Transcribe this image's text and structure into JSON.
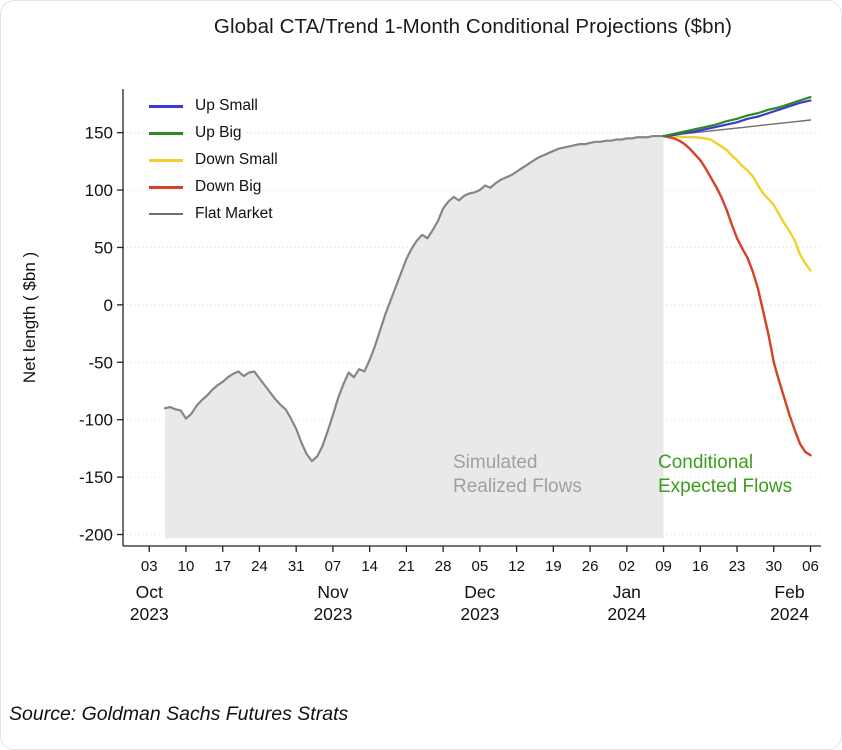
{
  "title": "Global CTA/Trend 1-Month Conditional Projections ($bn)",
  "source": "Source: Goldman Sachs Futures Strats",
  "annotations": {
    "realized_line1": "Simulated",
    "realized_line2": "Realized Flows",
    "expected_line1": "Conditional",
    "expected_line2": "Expected Flows"
  },
  "chart_data": {
    "type": "line",
    "title": "Global CTA/Trend 1-Month Conditional Projections ($bn)",
    "xlabel": "",
    "ylabel": "Net length ( $bn )",
    "ylim": [
      -210,
      188
    ],
    "yticks": [
      -200,
      -150,
      -100,
      -50,
      0,
      50,
      100,
      150
    ],
    "grid": "horizontal-dotted",
    "x_unit": "days since 2023-10-03, weekly ticks",
    "xticks": [
      {
        "day": 0,
        "label": "03"
      },
      {
        "day": 7,
        "label": "10"
      },
      {
        "day": 14,
        "label": "17"
      },
      {
        "day": 21,
        "label": "24"
      },
      {
        "day": 28,
        "label": "31"
      },
      {
        "day": 35,
        "label": "07"
      },
      {
        "day": 42,
        "label": "14"
      },
      {
        "day": 49,
        "label": "21"
      },
      {
        "day": 56,
        "label": "28"
      },
      {
        "day": 63,
        "label": "05"
      },
      {
        "day": 70,
        "label": "12"
      },
      {
        "day": 77,
        "label": "19"
      },
      {
        "day": 84,
        "label": "26"
      },
      {
        "day": 91,
        "label": "02"
      },
      {
        "day": 98,
        "label": "09"
      },
      {
        "day": 105,
        "label": "16"
      },
      {
        "day": 112,
        "label": "23"
      },
      {
        "day": 119,
        "label": "30"
      },
      {
        "day": 126,
        "label": "06"
      }
    ],
    "month_labels": [
      {
        "day": 0,
        "month": "Oct",
        "year": "2023"
      },
      {
        "day": 35,
        "month": "Nov",
        "year": "2023"
      },
      {
        "day": 63,
        "month": "Dec",
        "year": "2023"
      },
      {
        "day": 91,
        "month": "Jan",
        "year": "2024"
      },
      {
        "day": 122,
        "month": "Feb",
        "year": "2024"
      }
    ],
    "legend": {
      "position": "upper-left",
      "entries": [
        "Up Small",
        "Up Big",
        "Down Small",
        "Down Big",
        "Flat Market"
      ]
    },
    "colors": {
      "shade": "#e9e9e9",
      "realized_line": "#868686",
      "up_small": "#3a3ad0",
      "up_big": "#2f8b21",
      "down_small": "#f2d12e",
      "down_big": "#d64128",
      "flat_market": "#6e6e6e",
      "realized_text": "#a0a0a0",
      "expected_text": "#3a9e1e"
    },
    "series": [
      {
        "id": "realized",
        "name": "Simulated Realized Flows",
        "legend": false,
        "color": "#868686",
        "width": 2.2,
        "points": [
          [
            3,
            -90
          ],
          [
            4,
            -89
          ],
          [
            5,
            -91
          ],
          [
            6,
            -92
          ],
          [
            7,
            -99
          ],
          [
            8,
            -95
          ],
          [
            9,
            -88
          ],
          [
            10,
            -83
          ],
          [
            11,
            -79
          ],
          [
            12,
            -74
          ],
          [
            13,
            -70
          ],
          [
            14,
            -67
          ],
          [
            15,
            -63
          ],
          [
            16,
            -60
          ],
          [
            17,
            -58
          ],
          [
            18,
            -62
          ],
          [
            19,
            -59
          ],
          [
            20,
            -58
          ],
          [
            21,
            -64
          ],
          [
            22,
            -70
          ],
          [
            23,
            -76
          ],
          [
            24,
            -82
          ],
          [
            25,
            -87
          ],
          [
            26,
            -91
          ],
          [
            27,
            -99
          ],
          [
            28,
            -108
          ],
          [
            29,
            -120
          ],
          [
            30,
            -130
          ],
          [
            31,
            -136
          ],
          [
            32,
            -132
          ],
          [
            33,
            -123
          ],
          [
            34,
            -110
          ],
          [
            35,
            -96
          ],
          [
            36,
            -81
          ],
          [
            37,
            -69
          ],
          [
            38,
            -59
          ],
          [
            39,
            -63
          ],
          [
            40,
            -56
          ],
          [
            41,
            -58
          ],
          [
            42,
            -48
          ],
          [
            43,
            -36
          ],
          [
            44,
            -22
          ],
          [
            45,
            -8
          ],
          [
            46,
            4
          ],
          [
            47,
            16
          ],
          [
            48,
            28
          ],
          [
            49,
            40
          ],
          [
            50,
            49
          ],
          [
            51,
            56
          ],
          [
            52,
            61
          ],
          [
            53,
            58
          ],
          [
            54,
            65
          ],
          [
            55,
            73
          ],
          [
            56,
            84
          ],
          [
            57,
            90
          ],
          [
            58,
            94
          ],
          [
            59,
            91
          ],
          [
            60,
            95
          ],
          [
            61,
            97
          ],
          [
            62,
            98
          ],
          [
            63,
            100
          ],
          [
            64,
            104
          ],
          [
            65,
            102
          ],
          [
            66,
            106
          ],
          [
            67,
            109
          ],
          [
            68,
            111
          ],
          [
            69,
            113
          ],
          [
            70,
            116
          ],
          [
            71,
            119
          ],
          [
            72,
            122
          ],
          [
            73,
            125
          ],
          [
            74,
            128
          ],
          [
            75,
            130
          ],
          [
            76,
            132
          ],
          [
            77,
            134
          ],
          [
            78,
            136
          ],
          [
            79,
            137
          ],
          [
            80,
            138
          ],
          [
            81,
            139
          ],
          [
            82,
            140
          ],
          [
            83,
            140
          ],
          [
            84,
            141
          ],
          [
            85,
            142
          ],
          [
            86,
            142
          ],
          [
            87,
            143
          ],
          [
            88,
            143
          ],
          [
            89,
            144
          ],
          [
            90,
            144
          ],
          [
            91,
            145
          ],
          [
            92,
            145
          ],
          [
            93,
            146
          ],
          [
            94,
            146
          ],
          [
            95,
            146
          ],
          [
            96,
            147
          ],
          [
            97,
            147
          ],
          [
            98,
            147
          ]
        ]
      },
      {
        "id": "flat_market",
        "name": "Flat Market",
        "legend": true,
        "color": "#6e6e6e",
        "width": 1.4,
        "points": [
          [
            98,
            147
          ],
          [
            102,
            149
          ],
          [
            106,
            151
          ],
          [
            110,
            153
          ],
          [
            114,
            155
          ],
          [
            118,
            157
          ],
          [
            122,
            159
          ],
          [
            126,
            161
          ]
        ]
      },
      {
        "id": "down_small",
        "name": "Down Small",
        "legend": true,
        "color": "#f2d12e",
        "width": 2.4,
        "points": [
          [
            98,
            147
          ],
          [
            100,
            147
          ],
          [
            102,
            146
          ],
          [
            104,
            146
          ],
          [
            106,
            145
          ],
          [
            107,
            144
          ],
          [
            108,
            141
          ],
          [
            109,
            138
          ],
          [
            110,
            135
          ],
          [
            111,
            130
          ],
          [
            112,
            126
          ],
          [
            113,
            121
          ],
          [
            114,
            117
          ],
          [
            115,
            112
          ],
          [
            116,
            104
          ],
          [
            117,
            97
          ],
          [
            118,
            92
          ],
          [
            119,
            87
          ],
          [
            120,
            79
          ],
          [
            121,
            71
          ],
          [
            122,
            64
          ],
          [
            123,
            56
          ],
          [
            124,
            44
          ],
          [
            125,
            36
          ],
          [
            126,
            30
          ]
        ]
      },
      {
        "id": "down_big",
        "name": "Down Big",
        "legend": true,
        "color": "#d64128",
        "width": 2.4,
        "points": [
          [
            98,
            147
          ],
          [
            99,
            146
          ],
          [
            100,
            145
          ],
          [
            101,
            143
          ],
          [
            102,
            140
          ],
          [
            103,
            136
          ],
          [
            104,
            131
          ],
          [
            105,
            126
          ],
          [
            106,
            119
          ],
          [
            107,
            111
          ],
          [
            108,
            103
          ],
          [
            109,
            94
          ],
          [
            110,
            83
          ],
          [
            111,
            70
          ],
          [
            112,
            58
          ],
          [
            113,
            49
          ],
          [
            114,
            41
          ],
          [
            115,
            29
          ],
          [
            116,
            14
          ],
          [
            117,
            -6
          ],
          [
            118,
            -26
          ],
          [
            119,
            -50
          ],
          [
            120,
            -66
          ],
          [
            121,
            -81
          ],
          [
            122,
            -96
          ],
          [
            123,
            -109
          ],
          [
            124,
            -121
          ],
          [
            125,
            -128
          ],
          [
            126,
            -131
          ]
        ]
      },
      {
        "id": "up_small",
        "name": "Up Small",
        "legend": true,
        "color": "#3a3ad0",
        "width": 2.2,
        "points": [
          [
            98,
            147
          ],
          [
            100,
            148
          ],
          [
            102,
            150
          ],
          [
            104,
            151
          ],
          [
            106,
            153
          ],
          [
            108,
            155
          ],
          [
            110,
            157
          ],
          [
            112,
            159
          ],
          [
            114,
            162
          ],
          [
            116,
            164
          ],
          [
            118,
            167
          ],
          [
            120,
            170
          ],
          [
            122,
            173
          ],
          [
            124,
            176
          ],
          [
            126,
            178
          ]
        ]
      },
      {
        "id": "up_big",
        "name": "Up Big",
        "legend": true,
        "color": "#2f8b21",
        "width": 2.2,
        "points": [
          [
            98,
            147
          ],
          [
            100,
            149
          ],
          [
            102,
            151
          ],
          [
            104,
            153
          ],
          [
            106,
            155
          ],
          [
            108,
            157
          ],
          [
            110,
            160
          ],
          [
            112,
            162
          ],
          [
            114,
            165
          ],
          [
            116,
            167
          ],
          [
            118,
            170
          ],
          [
            120,
            172
          ],
          [
            122,
            175
          ],
          [
            124,
            178
          ],
          [
            126,
            181
          ]
        ]
      }
    ]
  }
}
